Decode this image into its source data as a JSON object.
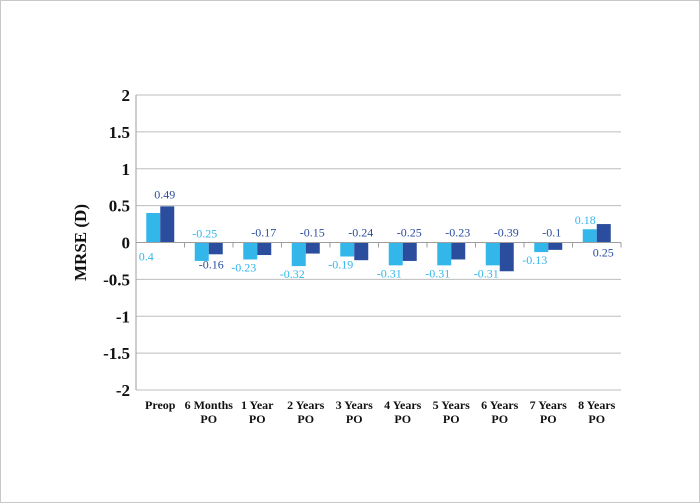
{
  "chart_data": {
    "type": "bar",
    "ylabel": "MRSE (D)",
    "ylim": [
      -2,
      2
    ],
    "yticks": [
      2,
      1.5,
      1,
      0.5,
      0,
      -0.5,
      -1,
      -1.5,
      -2
    ],
    "ytick_labels": [
      "2",
      "1.5",
      "1",
      "0.5",
      "0",
      "-0.5",
      "-1",
      "-1.5",
      "-2"
    ],
    "grid": true,
    "legend": "none",
    "categories": [
      [
        "Preop"
      ],
      [
        "6 Months",
        "PO"
      ],
      [
        "1 Year",
        "PO"
      ],
      [
        "2 Years",
        "PO"
      ],
      [
        "3 Years",
        "PO"
      ],
      [
        "4 Years",
        "PO"
      ],
      [
        "5 Years",
        "PO"
      ],
      [
        "6 Years",
        "PO"
      ],
      [
        "7 Years",
        "PO"
      ],
      [
        "8 Years",
        "PO"
      ]
    ],
    "series": [
      {
        "color": "#33b7ea",
        "values": [
          0.4,
          -0.25,
          -0.23,
          -0.32,
          -0.19,
          -0.31,
          -0.31,
          -0.31,
          -0.13,
          0.18
        ],
        "labels": [
          "0.4",
          "-0.25",
          "-0.23",
          "-0.32",
          "-0.19",
          "-0.31",
          "-0.31",
          "-0.31",
          "-0.13",
          "0.18"
        ]
      },
      {
        "color": "#2a4d9e",
        "values": [
          0.49,
          -0.16,
          -0.17,
          -0.15,
          -0.24,
          -0.25,
          -0.23,
          -0.39,
          -0.1,
          0.25
        ],
        "labels": [
          "0.49",
          "-0.16",
          "-0.17",
          "-0.15",
          "-0.24",
          "-0.25",
          "-0.23",
          "-0.39",
          "-0.1",
          "0.25"
        ]
      }
    ]
  }
}
